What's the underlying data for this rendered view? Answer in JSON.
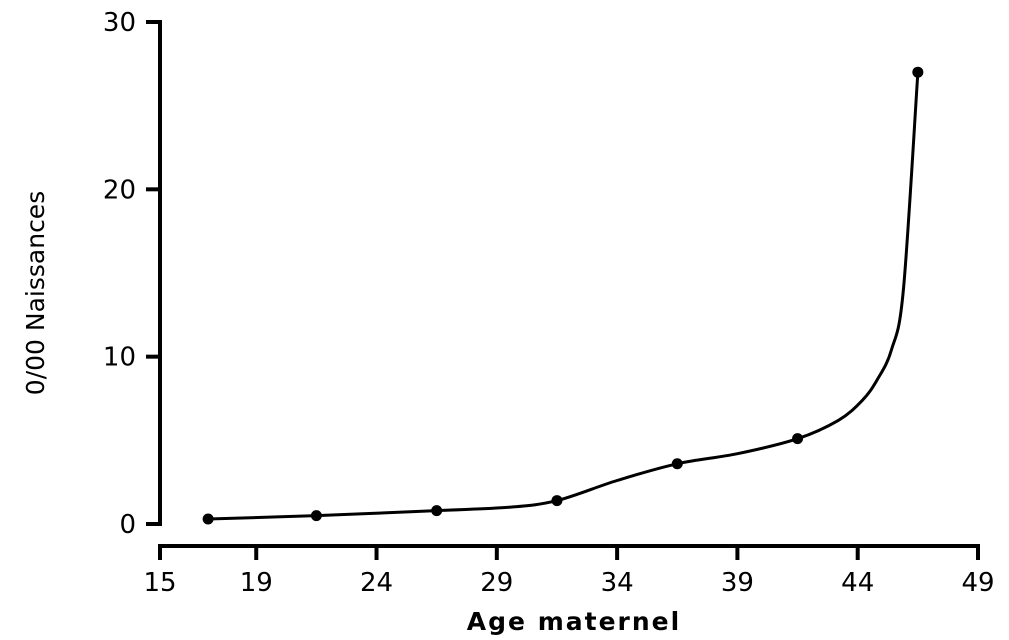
{
  "chart_data": {
    "type": "line",
    "title": "",
    "xlabel": "Age maternel",
    "ylabel": "0/00 Naissances",
    "xlim": [
      15,
      49
    ],
    "ylim": [
      0,
      30
    ],
    "xticks": [
      15,
      19,
      24,
      29,
      34,
      39,
      44,
      49
    ],
    "xtick_labels": [
      "15",
      "19",
      "24",
      "29",
      "34",
      "39",
      "44",
      "49"
    ],
    "yticks": [
      0,
      10,
      20,
      30
    ],
    "ytick_labels": [
      "0",
      "10",
      "20",
      "30"
    ],
    "grid": false,
    "x": [
      17,
      21.5,
      26.5,
      31.5,
      36.5,
      41.5,
      46.5
    ],
    "y": [
      0.3,
      0.5,
      0.8,
      1.4,
      3.6,
      5.1,
      27
    ],
    "curve": {
      "x": [
        17,
        21.5,
        26.5,
        29.5,
        31.5,
        34,
        36.5,
        39,
        41.5,
        43.2,
        44.2,
        44.8,
        45.4,
        45.9,
        46.5
      ],
      "y": [
        0.3,
        0.5,
        0.8,
        1.0,
        1.4,
        2.6,
        3.6,
        4.2,
        5.1,
        6.2,
        7.4,
        8.6,
        10.4,
        14,
        27
      ]
    }
  }
}
